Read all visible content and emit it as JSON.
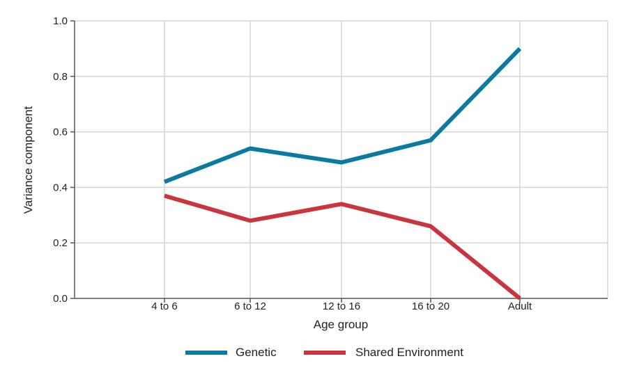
{
  "chart_data": {
    "type": "line",
    "categories": [
      "4 to 6",
      "6 to 12",
      "12 to 16",
      "16 to 20",
      "Adult"
    ],
    "series": [
      {
        "name": "Genetic",
        "values": [
          0.42,
          0.54,
          0.49,
          0.57,
          0.9
        ],
        "color": "#0a7aa0"
      },
      {
        "name": "Shared Environment",
        "values": [
          0.37,
          0.28,
          0.34,
          0.26,
          0.0
        ],
        "color": "#c9343f"
      }
    ],
    "title": "",
    "xlabel": "Age group",
    "ylabel": "Variance component",
    "ylim": [
      0.0,
      1.0
    ],
    "yticks": [
      "0.0",
      "0.2",
      "0.4",
      "0.6",
      "0.8",
      "1.0"
    ],
    "grid": true,
    "legend_position": "bottom-center",
    "grid_color": "#d6d6d6",
    "axis_color": "#555555"
  }
}
